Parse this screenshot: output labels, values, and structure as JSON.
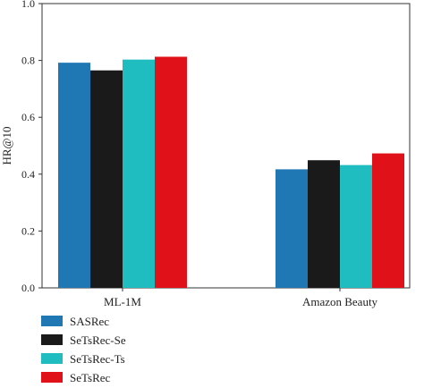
{
  "chart_data": {
    "type": "bar",
    "title": "",
    "xlabel": "",
    "ylabel": "HR@10",
    "ylim": [
      0,
      1.0
    ],
    "yticks": [
      "0.0",
      "0.2",
      "0.4",
      "0.6",
      "0.8",
      "1.0"
    ],
    "categories": [
      "ML-1M",
      "Amazon Beauty"
    ],
    "series": [
      {
        "name": "SASRec",
        "color": "#1f77b4",
        "values": [
          0.792,
          0.417
        ]
      },
      {
        "name": "SeTsRec-Se",
        "color": "#1a1a1a",
        "values": [
          0.765,
          0.449
        ]
      },
      {
        "name": "SeTsRec-Ts",
        "color": "#1fbcc0",
        "values": [
          0.803,
          0.432
        ]
      },
      {
        "name": "SeTsRec",
        "color": "#e11119",
        "values": [
          0.813,
          0.473
        ]
      }
    ],
    "grid": false,
    "legend_position": "bottom-left"
  }
}
